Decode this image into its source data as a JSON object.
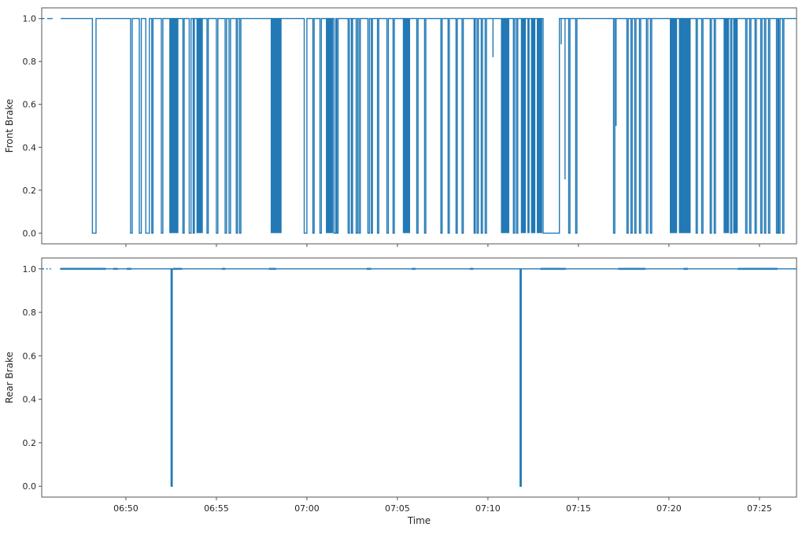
{
  "figure": {
    "background": "#ffffff",
    "line_color": "#2279b5",
    "spine_color": "#555555",
    "tick_text_color": "#262626"
  },
  "chart_data": [
    {
      "type": "line",
      "style": "binary-step",
      "ylabel": "Front Brake",
      "xlabel": "",
      "ylim": [
        -0.05,
        1.05
      ],
      "yticks": [
        {
          "v": 0.0,
          "label": "0.0"
        },
        {
          "v": 0.2,
          "label": "0.2"
        },
        {
          "v": 0.4,
          "label": "0.4"
        },
        {
          "v": 0.6,
          "label": "0.6"
        },
        {
          "v": 0.8,
          "label": "0.8"
        },
        {
          "v": 1.0,
          "label": "1.0"
        }
      ],
      "x_domain_minutes": [
        45.35,
        87.05
      ],
      "xticks": [
        {
          "t": 50,
          "label": "06:50"
        },
        {
          "t": 55,
          "label": "06:55"
        },
        {
          "t": 60,
          "label": "07:00"
        },
        {
          "t": 65,
          "label": "07:05"
        },
        {
          "t": 70,
          "label": "07:10"
        },
        {
          "t": 75,
          "label": "07:15"
        },
        {
          "t": 80,
          "label": "07:20"
        },
        {
          "t": 85,
          "label": "07:25"
        }
      ],
      "show_xtick_labels": false,
      "segments": [
        [
          45.35,
          45.5
        ],
        [
          45.65,
          45.95
        ],
        [
          46.4,
          87.05
        ]
      ],
      "zeros": [
        [
          48.15,
          48.35
        ],
        [
          50.26,
          50.35
        ],
        [
          50.74,
          50.85
        ],
        [
          51.1,
          51.3
        ],
        [
          51.43,
          51.5
        ],
        [
          51.96,
          52.04
        ],
        [
          53.15,
          53.22
        ],
        [
          53.5,
          53.6
        ],
        [
          53.72,
          53.78
        ],
        [
          54.48,
          54.55
        ],
        [
          55.0,
          55.08
        ],
        [
          55.48,
          55.56
        ],
        [
          55.7,
          55.78
        ],
        [
          56.1,
          56.17
        ],
        [
          56.28,
          56.35
        ],
        [
          59.85,
          60.0
        ],
        [
          60.33,
          60.4
        ],
        [
          60.72,
          60.8
        ],
        [
          61.5,
          61.6
        ],
        [
          61.65,
          61.72
        ],
        [
          62.28,
          62.35
        ],
        [
          62.46,
          62.52
        ],
        [
          62.72,
          62.8
        ],
        [
          62.88,
          62.95
        ],
        [
          63.37,
          63.45
        ],
        [
          63.55,
          63.62
        ],
        [
          63.9,
          63.97
        ],
        [
          64.42,
          64.5
        ],
        [
          64.76,
          64.83
        ],
        [
          66.07,
          66.14
        ],
        [
          66.5,
          66.57
        ],
        [
          67.4,
          67.47
        ],
        [
          67.8,
          67.87
        ],
        [
          68.24,
          68.31
        ],
        [
          68.57,
          68.64
        ],
        [
          69.24,
          69.3
        ],
        [
          69.4,
          69.47
        ],
        [
          69.63,
          69.7
        ],
        [
          69.85,
          69.92
        ],
        [
          71.41,
          71.48
        ],
        [
          71.58,
          71.65
        ],
        [
          73.05,
          73.95
        ],
        [
          74.46,
          74.53
        ],
        [
          74.85,
          74.92
        ],
        [
          76.94,
          77.01
        ],
        [
          77.68,
          77.75
        ],
        [
          77.9,
          77.97
        ],
        [
          78.11,
          78.18
        ],
        [
          78.37,
          78.44
        ],
        [
          78.76,
          78.83
        ],
        [
          78.98,
          79.05
        ],
        [
          81.5,
          81.57
        ],
        [
          81.81,
          81.88
        ],
        [
          82.28,
          82.35
        ],
        [
          82.5,
          82.57
        ],
        [
          83.4,
          83.47
        ],
        [
          84.24,
          84.31
        ],
        [
          84.46,
          84.53
        ],
        [
          84.76,
          84.83
        ],
        [
          85.07,
          85.14
        ],
        [
          85.28,
          85.35
        ],
        [
          85.5,
          85.57
        ],
        [
          85.94,
          86.01
        ],
        [
          86.07,
          86.14
        ],
        [
          86.28,
          86.35
        ]
      ],
      "bursts": [
        [
          52.4,
          52.9
        ],
        [
          53.9,
          54.25
        ],
        [
          58.0,
          58.6
        ],
        [
          61.05,
          61.45
        ],
        [
          65.3,
          65.7
        ],
        [
          70.72,
          71.18
        ],
        [
          71.82,
          72.1
        ],
        [
          72.18,
          72.3
        ],
        [
          72.38,
          72.62
        ],
        [
          72.7,
          73.0
        ],
        [
          80.05,
          80.45
        ],
        [
          80.55,
          81.2
        ],
        [
          83.02,
          83.32
        ],
        [
          83.55,
          83.8
        ]
      ],
      "partials": [
        [
          70.28,
          0.82
        ],
        [
          74.05,
          0.88
        ],
        [
          74.26,
          0.25
        ],
        [
          77.08,
          0.5
        ]
      ],
      "thick_spans": []
    },
    {
      "type": "line",
      "style": "binary-step",
      "ylabel": "Rear Brake",
      "xlabel": "Time",
      "ylim": [
        -0.05,
        1.05
      ],
      "yticks": [
        {
          "v": 0.0,
          "label": "0.0"
        },
        {
          "v": 0.2,
          "label": "0.2"
        },
        {
          "v": 0.4,
          "label": "0.4"
        },
        {
          "v": 0.6,
          "label": "0.6"
        },
        {
          "v": 0.8,
          "label": "0.8"
        },
        {
          "v": 1.0,
          "label": "1.0"
        }
      ],
      "x_domain_minutes": [
        45.35,
        87.05
      ],
      "xticks": [
        {
          "t": 50,
          "label": "06:50"
        },
        {
          "t": 55,
          "label": "06:55"
        },
        {
          "t": 60,
          "label": "07:00"
        },
        {
          "t": 65,
          "label": "07:05"
        },
        {
          "t": 70,
          "label": "07:10"
        },
        {
          "t": 75,
          "label": "07:15"
        },
        {
          "t": 80,
          "label": "07:20"
        },
        {
          "t": 85,
          "label": "07:25"
        }
      ],
      "show_xtick_labels": true,
      "segments": [
        [
          45.35,
          45.48
        ],
        [
          45.6,
          45.68
        ],
        [
          45.78,
          45.86
        ],
        [
          46.35,
          87.05
        ]
      ],
      "zeros": [
        [
          52.5,
          52.56
        ],
        [
          71.78,
          71.84
        ]
      ],
      "bursts": [],
      "partials": [],
      "thick_spans": [
        [
          46.4,
          48.9
        ],
        [
          49.3,
          49.55
        ],
        [
          50.05,
          50.3
        ],
        [
          52.6,
          53.1
        ],
        [
          55.3,
          55.5
        ],
        [
          57.9,
          58.3
        ],
        [
          63.3,
          63.55
        ],
        [
          65.8,
          66.0
        ],
        [
          69.0,
          69.2
        ],
        [
          72.9,
          74.3
        ],
        [
          77.2,
          78.7
        ],
        [
          80.8,
          81.05
        ],
        [
          83.8,
          86.0
        ]
      ]
    }
  ]
}
